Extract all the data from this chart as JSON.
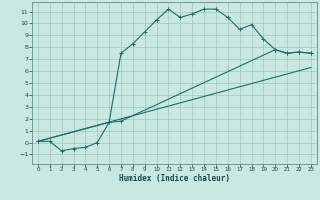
{
  "xlabel": "Humidex (Indice chaleur)",
  "bg_color": "#c8e8e0",
  "grid_color": "#a0c8c0",
  "line_color": "#1a7068",
  "xlim": [
    -0.5,
    23.5
  ],
  "ylim": [
    -1.8,
    11.8
  ],
  "xticks": [
    0,
    1,
    2,
    3,
    4,
    5,
    6,
    7,
    8,
    9,
    10,
    11,
    12,
    13,
    14,
    15,
    16,
    17,
    18,
    19,
    20,
    21,
    22,
    23
  ],
  "yticks": [
    -1,
    0,
    1,
    2,
    3,
    4,
    5,
    6,
    7,
    8,
    9,
    10,
    11
  ],
  "line1_x": [
    0,
    1,
    2,
    3,
    4,
    5,
    6,
    7,
    8,
    9,
    10,
    11,
    12,
    13,
    14,
    15,
    16,
    17,
    18,
    19,
    20,
    21,
    22,
    23
  ],
  "line1_y": [
    0.1,
    0.1,
    -0.7,
    -0.5,
    -0.4,
    0.0,
    1.7,
    7.5,
    8.3,
    9.3,
    10.3,
    11.2,
    10.5,
    10.8,
    11.2,
    11.2,
    10.5,
    9.5,
    9.9,
    8.7,
    7.8,
    7.5,
    7.6,
    7.5
  ],
  "line2_x": [
    0,
    6,
    7,
    20,
    21,
    22,
    23
  ],
  "line2_y": [
    0.1,
    1.7,
    1.8,
    7.8,
    7.5,
    7.6,
    7.5
  ],
  "line3_x": [
    0,
    23
  ],
  "line3_y": [
    0.1,
    6.3
  ]
}
